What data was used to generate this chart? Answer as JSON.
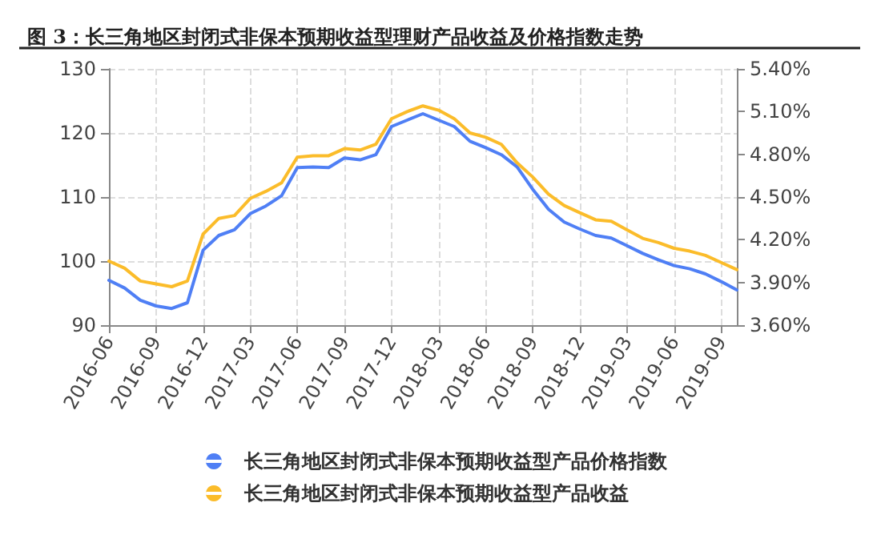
{
  "chart_data": {
    "type": "line",
    "title": "图 3：长三角地区封闭式非保本预期收益型理财产品收益及价格指数走势",
    "categories": [
      "2016-06",
      null,
      null,
      "2016-09",
      null,
      null,
      "2016-12",
      null,
      null,
      "2017-03",
      null,
      null,
      "2017-06",
      null,
      null,
      "2017-09",
      null,
      null,
      "2017-12",
      null,
      null,
      "2018-03",
      null,
      null,
      "2018-06",
      null,
      null,
      "2018-09",
      null,
      null,
      "2018-12",
      null,
      null,
      "2019-03",
      null,
      null,
      "2019-06",
      null,
      null,
      "2019-09",
      null
    ],
    "series": [
      {
        "name": "长三角地区封闭式非保本预期收益型产品价格指数",
        "color": "#4f7ff5",
        "values": [
          97.0,
          95.8,
          93.9,
          93.0,
          92.6,
          93.5,
          101.7,
          104.0,
          104.9,
          107.4,
          108.6,
          110.2,
          114.6,
          114.7,
          114.6,
          116.1,
          115.8,
          116.6,
          121.0,
          122.0,
          123.0,
          122.0,
          121.0,
          118.7,
          117.7,
          116.6,
          114.7,
          111.2,
          108.1,
          106.1,
          105.0,
          104.0,
          103.6,
          102.4,
          101.2,
          100.2,
          99.3,
          98.8,
          98.0,
          96.8,
          95.5
        ]
      },
      {
        "name": "长三角地区封闭式非保本预期收益型产品收益",
        "color": "#fbbc2a",
        "axis": "y2",
        "values": [
          4.05,
          4.0,
          3.91,
          3.89,
          3.87,
          3.91,
          4.24,
          4.35,
          4.37,
          4.49,
          4.54,
          4.6,
          4.78,
          4.79,
          4.79,
          4.84,
          4.83,
          4.87,
          5.05,
          5.1,
          5.14,
          5.11,
          5.05,
          4.95,
          4.92,
          4.87,
          4.74,
          4.64,
          4.52,
          4.44,
          4.39,
          4.34,
          4.33,
          4.27,
          4.21,
          4.18,
          4.14,
          4.12,
          4.09,
          4.04,
          3.99
        ]
      }
    ],
    "ylim": [
      90,
      130
    ],
    "yticks": [
      90,
      100,
      110,
      120,
      130
    ],
    "y2lim": [
      3.6,
      5.4
    ],
    "y2ticks": [
      {
        "value": 3.6,
        "label": "3.60%"
      },
      {
        "value": 3.9,
        "label": "3.90%"
      },
      {
        "value": 4.2,
        "label": "4.20%"
      },
      {
        "value": 4.5,
        "label": "4.50%"
      },
      {
        "value": 4.8,
        "label": "4.80%"
      },
      {
        "value": 5.1,
        "label": "5.10%"
      },
      {
        "value": 5.4,
        "label": "5.40%"
      }
    ],
    "grid": true,
    "legend": "bottom",
    "marker": "none",
    "line_style": "solid"
  }
}
